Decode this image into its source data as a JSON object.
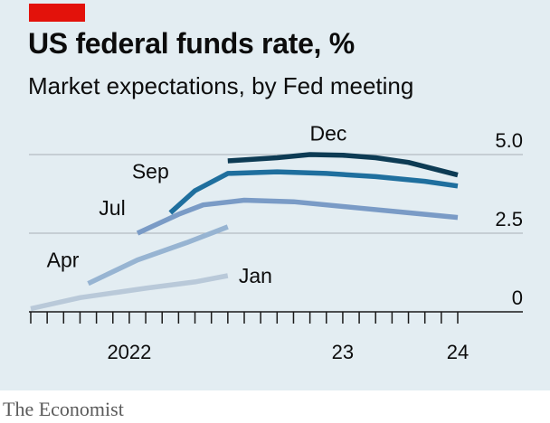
{
  "header": {
    "title": "US federal funds rate, %",
    "subtitle": "Market expectations, by Fed meeting"
  },
  "footer": {
    "source": "The Economist"
  },
  "colors": {
    "background": "#e3edf2",
    "brand_red": "#e3120b",
    "grid": "#b5bdc2",
    "axis": "#1a1a1a",
    "Jan": "#b9c9d9",
    "Apr": "#97b4d2",
    "Jul": "#7a9bc6",
    "Sep": "#1f6f9e",
    "Dec": "#0d3b54"
  },
  "chart_data": {
    "type": "line",
    "title": "US federal funds rate, %",
    "subtitle": "Market expectations, by Fed meeting",
    "xlabel": "",
    "ylabel": "%",
    "x_axis": {
      "range": [
        0,
        26
      ],
      "unit": "months since Jan 2022",
      "ticks": [
        0,
        1,
        2,
        3,
        4,
        5,
        6,
        7,
        8,
        9,
        10,
        11,
        12,
        13,
        14,
        15,
        16,
        17,
        18,
        19,
        20,
        21,
        22,
        23,
        24,
        25,
        26
      ]
    },
    "x_tick_labels": [
      {
        "value": 6,
        "label": "2022"
      },
      {
        "value": 19,
        "label": "23"
      },
      {
        "value": 26,
        "label": "24"
      }
    ],
    "y_axis": {
      "range": [
        0,
        5
      ],
      "ticks": [
        0,
        2.5,
        5.0
      ],
      "tick_labels": [
        "0",
        "2.5",
        "5.0"
      ],
      "grid": true
    },
    "series": [
      {
        "name": "Jan",
        "x": [
          0,
          3,
          7,
          10,
          12
        ],
        "y": [
          0.1,
          0.45,
          0.75,
          0.95,
          1.15
        ]
      },
      {
        "name": "Apr",
        "x": [
          3.5,
          6.5,
          9.5,
          12
        ],
        "y": [
          0.9,
          1.65,
          2.2,
          2.7
        ]
      },
      {
        "name": "Jul",
        "x": [
          6.5,
          9,
          10.5,
          13,
          16,
          20,
          23,
          26
        ],
        "y": [
          2.5,
          3.1,
          3.4,
          3.55,
          3.5,
          3.3,
          3.15,
          3.0
        ]
      },
      {
        "name": "Sep",
        "x": [
          8.5,
          10,
          12,
          15,
          18,
          21,
          24,
          26
        ],
        "y": [
          3.15,
          3.85,
          4.4,
          4.45,
          4.4,
          4.3,
          4.15,
          4.0
        ]
      },
      {
        "name": "Dec",
        "x": [
          12,
          15,
          17,
          19,
          21,
          23,
          26
        ],
        "y": [
          4.8,
          4.9,
          5.0,
          4.98,
          4.9,
          4.75,
          4.35
        ]
      }
    ],
    "annotations": [
      "Jan",
      "Apr",
      "Jul",
      "Sep",
      "Dec"
    ]
  }
}
